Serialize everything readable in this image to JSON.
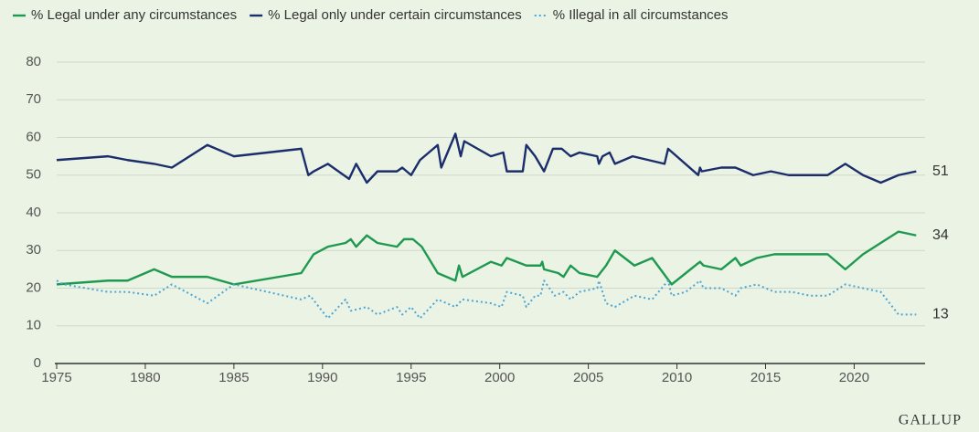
{
  "chart_data": {
    "type": "line",
    "brand": "GALLUP",
    "xlim": [
      1975,
      2024
    ],
    "xticks": [
      1975,
      1980,
      1985,
      1990,
      1995,
      2000,
      2005,
      2010,
      2015,
      2020
    ],
    "ylim": [
      0,
      80
    ],
    "yticks": [
      0,
      10,
      20,
      30,
      40,
      50,
      60,
      70,
      80
    ],
    "grid": true,
    "legend": "top-left",
    "series": [
      {
        "name": "% Legal under any circumstances",
        "color": "#1f9950",
        "line_style": "solid",
        "x": [
          1975,
          1977.9,
          1979,
          1980.5,
          1981.5,
          1983.5,
          1985,
          1988.8,
          1989.5,
          1990.3,
          1991.3,
          1991.6,
          1991.9,
          1992.5,
          1993.1,
          1994.2,
          1994.6,
          1995.1,
          1995.6,
          1996.5,
          1997.5,
          1997.7,
          1997.9,
          1999.5,
          2000.1,
          2000.4,
          2001.5,
          2002.3,
          2002.4,
          2002.5,
          2003.3,
          2003.6,
          2004,
          2004.5,
          2005.5,
          2006,
          2006.5,
          2007.6,
          2008.6,
          2009.7,
          2010.5,
          2011.3,
          2011.5,
          2012.5,
          2013.3,
          2013.6,
          2014.5,
          2015.5,
          2018.5,
          2019.5,
          2020.5,
          2022.5,
          2023.5
        ],
        "values": [
          21,
          22,
          22,
          25,
          23,
          23,
          21,
          24,
          29,
          31,
          32,
          33,
          31,
          34,
          32,
          31,
          33,
          33,
          31,
          24,
          22,
          26,
          23,
          27,
          26,
          28,
          26,
          26,
          27,
          25,
          24,
          23,
          26,
          24,
          23,
          26,
          30,
          26,
          28,
          21,
          24,
          27,
          26,
          25,
          28,
          26,
          28,
          29,
          29,
          25,
          29,
          35,
          34
        ]
      },
      {
        "name": "% Legal only under certain circumstances",
        "color": "#1b2d6b",
        "line_style": "solid",
        "x": [
          1975,
          1977.9,
          1979,
          1980.5,
          1981.5,
          1983.5,
          1985,
          1988.8,
          1989.2,
          1989.5,
          1990.3,
          1991.5,
          1991.9,
          1992.5,
          1993.1,
          1994.2,
          1994.5,
          1995,
          1995.5,
          1996.5,
          1996.7,
          1997.5,
          1997.8,
          1998,
          1999.5,
          2000.2,
          2000.4,
          2001.3,
          2001.5,
          2002,
          2002.5,
          2003,
          2003.5,
          2004,
          2004.5,
          2005.5,
          2005.6,
          2005.8,
          2006.2,
          2006.5,
          2007.5,
          2009.3,
          2009.5,
          2011.2,
          2011.3,
          2011.4,
          2012.5,
          2013.3,
          2014.3,
          2015.3,
          2016.3,
          2018.5,
          2019.5,
          2020.5,
          2021.5,
          2022.5,
          2023.5
        ],
        "values": [
          54,
          55,
          54,
          53,
          52,
          58,
          55,
          57,
          50,
          51,
          53,
          49,
          53,
          48,
          51,
          51,
          52,
          50,
          54,
          58,
          52,
          61,
          55,
          59,
          55,
          56,
          51,
          51,
          58,
          55,
          51,
          57,
          57,
          55,
          56,
          55,
          53,
          55,
          56,
          53,
          55,
          53,
          57,
          50,
          52,
          51,
          52,
          52,
          50,
          51,
          50,
          50,
          53,
          50,
          48,
          50,
          51
        ]
      },
      {
        "name": "% Illegal in all circumstances",
        "color": "#4ba6d6",
        "line_style": "dotted",
        "x": [
          1975,
          1975.4,
          1977.9,
          1979,
          1980.5,
          1981.5,
          1983.5,
          1985,
          1988.8,
          1989.3,
          1990.3,
          1991.3,
          1991.6,
          1992.5,
          1993.1,
          1994.2,
          1994.5,
          1995,
          1995.5,
          1996.5,
          1997.5,
          1997.9,
          1999.5,
          2000.1,
          2000.4,
          2001.3,
          2001.5,
          2002,
          2002.3,
          2002.5,
          2003.1,
          2003.6,
          2004,
          2004.5,
          2005.5,
          2005.6,
          2006,
          2006.5,
          2007.6,
          2008.6,
          2009.5,
          2009.7,
          2010.5,
          2011.3,
          2011.5,
          2012.5,
          2013.3,
          2013.6,
          2014.5,
          2015.5,
          2016.5,
          2017.5,
          2018.5,
          2019.5,
          2020.5,
          2021.5,
          2022.5,
          2023.5
        ],
        "values": [
          22,
          21,
          19,
          19,
          18,
          21,
          16,
          21,
          17,
          18,
          12,
          17,
          14,
          15,
          13,
          15,
          13,
          15,
          12,
          17,
          15,
          17,
          16,
          15,
          19,
          18,
          15,
          18,
          18,
          22,
          18,
          19,
          17,
          19,
          20,
          22,
          16,
          15,
          18,
          17,
          22,
          18,
          19,
          22,
          20,
          20,
          18,
          20,
          21,
          19,
          19,
          18,
          18,
          21,
          20,
          19,
          13,
          13
        ]
      }
    ]
  }
}
